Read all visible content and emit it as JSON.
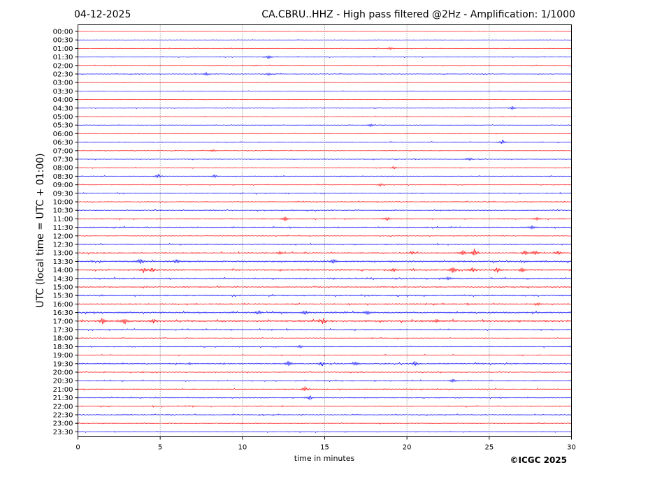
{
  "header": {
    "date": "04-12-2025",
    "title": "CA.CBRU..HHZ - High pass filtered @2Hz - Amplification: 1/1000"
  },
  "footer": {
    "copyright": "©ICGC 2025"
  },
  "chart_data": {
    "type": "line",
    "title": "CA.CBRU..HHZ - High pass filtered @2Hz - Amplification: 1/1000",
    "xlabel": "time in minutes",
    "ylabel": "UTC (local time = UTC + 01:00)",
    "xlim": [
      0,
      30
    ],
    "x_ticks": [
      0,
      5,
      10,
      15,
      20,
      25,
      30
    ],
    "x_tick_labels": [
      "0",
      "5",
      "10",
      "15",
      "20",
      "25",
      "30"
    ],
    "vertical_grid_minutes": [
      5,
      10,
      15,
      20,
      25
    ],
    "grid": "vertical dotted",
    "colors": {
      "red": "#ff0000",
      "blue": "#0000ff",
      "grid": "#555555"
    },
    "row_labels": [
      "00:00",
      "00:30",
      "01:00",
      "01:30",
      "02:00",
      "02:30",
      "03:00",
      "03:30",
      "04:00",
      "04:30",
      "05:00",
      "05:30",
      "06:00",
      "06:30",
      "07:00",
      "07:30",
      "08:00",
      "08:30",
      "09:00",
      "09:30",
      "10:00",
      "10:30",
      "11:00",
      "11:30",
      "12:00",
      "12:30",
      "13:00",
      "13:30",
      "14:00",
      "14:30",
      "15:00",
      "15:30",
      "16:00",
      "16:30",
      "17:00",
      "17:30",
      "18:00",
      "18:30",
      "19:00",
      "19:30",
      "20:00",
      "20:30",
      "21:00",
      "21:30",
      "22:00",
      "22:30",
      "23:00",
      "23:30"
    ],
    "row_colors": [
      "red",
      "blue",
      "red",
      "blue",
      "red",
      "blue",
      "red",
      "blue",
      "red",
      "blue",
      "red",
      "blue",
      "red",
      "blue",
      "red",
      "blue",
      "red",
      "blue",
      "red",
      "blue",
      "red",
      "blue",
      "red",
      "blue",
      "red",
      "blue",
      "red",
      "blue",
      "red",
      "blue",
      "red",
      "blue",
      "red",
      "blue",
      "red",
      "blue",
      "red",
      "blue",
      "red",
      "blue",
      "red",
      "blue",
      "red",
      "blue",
      "red",
      "blue",
      "red",
      "blue"
    ],
    "noise_levels": [
      0.15,
      0.2,
      0.25,
      0.35,
      0.3,
      0.35,
      0.2,
      0.2,
      0.2,
      0.3,
      0.25,
      0.25,
      0.3,
      0.4,
      0.3,
      0.35,
      0.35,
      0.35,
      0.35,
      0.45,
      0.4,
      0.45,
      0.5,
      0.5,
      0.4,
      0.55,
      0.6,
      0.7,
      0.7,
      0.6,
      0.55,
      0.55,
      0.6,
      0.7,
      0.85,
      0.55,
      0.35,
      0.4,
      0.4,
      0.6,
      0.4,
      0.45,
      0.5,
      0.45,
      0.45,
      0.45,
      0.35,
      0.35
    ],
    "events": [
      {
        "row": 2,
        "minute": 19.0,
        "amp": 2
      },
      {
        "row": 3,
        "minute": 11.6,
        "amp": 3
      },
      {
        "row": 5,
        "minute": 7.8,
        "amp": 2
      },
      {
        "row": 5,
        "minute": 11.6,
        "amp": 2
      },
      {
        "row": 9,
        "minute": 26.4,
        "amp": 2.5
      },
      {
        "row": 11,
        "minute": 17.8,
        "amp": 2
      },
      {
        "row": 13,
        "minute": 25.8,
        "amp": 3
      },
      {
        "row": 14,
        "minute": 8.2,
        "amp": 2
      },
      {
        "row": 15,
        "minute": 23.8,
        "amp": 2
      },
      {
        "row": 16,
        "minute": 19.2,
        "amp": 2
      },
      {
        "row": 17,
        "minute": 4.9,
        "amp": 3.5
      },
      {
        "row": 17,
        "minute": 8.3,
        "amp": 2
      },
      {
        "row": 18,
        "minute": 18.4,
        "amp": 2
      },
      {
        "row": 22,
        "minute": 12.6,
        "amp": 3
      },
      {
        "row": 22,
        "minute": 18.8,
        "amp": 3
      },
      {
        "row": 22,
        "minute": 27.9,
        "amp": 2.5
      },
      {
        "row": 23,
        "minute": 27.6,
        "amp": 2.5
      },
      {
        "row": 26,
        "minute": 12.3,
        "amp": 2.5
      },
      {
        "row": 26,
        "minute": 20.3,
        "amp": 2.5
      },
      {
        "row": 26,
        "minute": 23.4,
        "amp": 4
      },
      {
        "row": 26,
        "minute": 24.1,
        "amp": 6
      },
      {
        "row": 26,
        "minute": 27.2,
        "amp": 4
      },
      {
        "row": 26,
        "minute": 27.8,
        "amp": 4
      },
      {
        "row": 26,
        "minute": 29.2,
        "amp": 4
      },
      {
        "row": 27,
        "minute": 3.8,
        "amp": 4
      },
      {
        "row": 27,
        "minute": 6.0,
        "amp": 3
      },
      {
        "row": 27,
        "minute": 15.5,
        "amp": 3
      },
      {
        "row": 28,
        "minute": 4.0,
        "amp": 3.5
      },
      {
        "row": 28,
        "minute": 4.5,
        "amp": 3
      },
      {
        "row": 28,
        "minute": 19.2,
        "amp": 3
      },
      {
        "row": 28,
        "minute": 22.8,
        "amp": 6
      },
      {
        "row": 28,
        "minute": 24.0,
        "amp": 4
      },
      {
        "row": 28,
        "minute": 25.5,
        "amp": 3.5
      },
      {
        "row": 28,
        "minute": 27.0,
        "amp": 3
      },
      {
        "row": 29,
        "minute": 22.5,
        "amp": 2
      },
      {
        "row": 32,
        "minute": 28.0,
        "amp": 2
      },
      {
        "row": 33,
        "minute": 11.0,
        "amp": 3
      },
      {
        "row": 33,
        "minute": 13.8,
        "amp": 3
      },
      {
        "row": 33,
        "minute": 17.6,
        "amp": 3
      },
      {
        "row": 34,
        "minute": 1.5,
        "amp": 4
      },
      {
        "row": 34,
        "minute": 2.8,
        "amp": 3.5
      },
      {
        "row": 34,
        "minute": 4.6,
        "amp": 3.5
      },
      {
        "row": 34,
        "minute": 14.9,
        "amp": 4
      },
      {
        "row": 34,
        "minute": 21.8,
        "amp": 2.5
      },
      {
        "row": 37,
        "minute": 13.5,
        "amp": 2
      },
      {
        "row": 39,
        "minute": 12.8,
        "amp": 4
      },
      {
        "row": 39,
        "minute": 14.8,
        "amp": 3.5
      },
      {
        "row": 39,
        "minute": 16.9,
        "amp": 3
      },
      {
        "row": 39,
        "minute": 20.5,
        "amp": 3.5
      },
      {
        "row": 41,
        "minute": 22.8,
        "amp": 2.5
      },
      {
        "row": 42,
        "minute": 13.8,
        "amp": 3.5
      },
      {
        "row": 43,
        "minute": 14.1,
        "amp": 3
      }
    ]
  }
}
